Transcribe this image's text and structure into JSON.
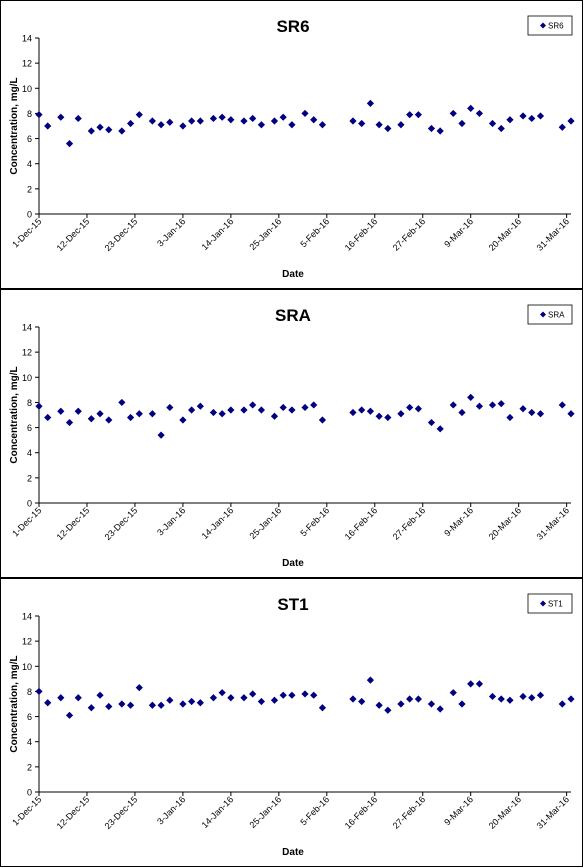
{
  "chart_data": [
    {
      "type": "scatter",
      "title": "SR6",
      "xlabel": "Date",
      "ylabel": "Concentration, mg/L",
      "ylim": [
        0,
        14
      ],
      "yticks": [
        0,
        2,
        4,
        6,
        8,
        10,
        12,
        14
      ],
      "xlim": [
        "2015-12-01",
        "2016-04-01"
      ],
      "xtick_labels": [
        "1-Dec-15",
        "12-Dec-15",
        "23-Dec-15",
        "3-Jan-16",
        "14-Jan-16",
        "25-Jan-16",
        "5-Feb-16",
        "16-Feb-16",
        "27-Feb-16",
        "9-Mar-16",
        "20-Mar-16",
        "31-Mar-16"
      ],
      "xtick_dates": [
        "2015-12-01",
        "2015-12-12",
        "2015-12-23",
        "2016-01-03",
        "2016-01-14",
        "2016-01-25",
        "2016-02-05",
        "2016-02-16",
        "2016-02-27",
        "2016-03-09",
        "2016-03-20",
        "2016-03-31"
      ],
      "grid": false,
      "legend_position": "top-right",
      "color": "#000080",
      "series": [
        {
          "name": "SR6",
          "points": [
            [
              "2015-12-01",
              7.9
            ],
            [
              "2015-12-03",
              7.0
            ],
            [
              "2015-12-06",
              7.7
            ],
            [
              "2015-12-08",
              5.6
            ],
            [
              "2015-12-10",
              7.6
            ],
            [
              "2015-12-13",
              6.6
            ],
            [
              "2015-12-15",
              6.9
            ],
            [
              "2015-12-17",
              6.7
            ],
            [
              "2015-12-20",
              6.6
            ],
            [
              "2015-12-22",
              7.2
            ],
            [
              "2015-12-24",
              7.9
            ],
            [
              "2015-12-27",
              7.4
            ],
            [
              "2015-12-29",
              7.1
            ],
            [
              "2015-12-31",
              7.3
            ],
            [
              "2016-01-03",
              7.0
            ],
            [
              "2016-01-05",
              7.4
            ],
            [
              "2016-01-07",
              7.4
            ],
            [
              "2016-01-10",
              7.6
            ],
            [
              "2016-01-12",
              7.7
            ],
            [
              "2016-01-14",
              7.5
            ],
            [
              "2016-01-17",
              7.4
            ],
            [
              "2016-01-19",
              7.6
            ],
            [
              "2016-01-21",
              7.1
            ],
            [
              "2016-01-24",
              7.4
            ],
            [
              "2016-01-26",
              7.7
            ],
            [
              "2016-01-28",
              7.1
            ],
            [
              "2016-01-31",
              8.0
            ],
            [
              "2016-02-02",
              7.5
            ],
            [
              "2016-02-04",
              7.1
            ],
            [
              "2016-02-11",
              7.4
            ],
            [
              "2016-02-13",
              7.2
            ],
            [
              "2016-02-15",
              8.8
            ],
            [
              "2016-02-17",
              7.1
            ],
            [
              "2016-02-19",
              6.8
            ],
            [
              "2016-02-22",
              7.1
            ],
            [
              "2016-02-24",
              7.9
            ],
            [
              "2016-02-26",
              7.9
            ],
            [
              "2016-02-29",
              6.8
            ],
            [
              "2016-03-02",
              6.6
            ],
            [
              "2016-03-05",
              8.0
            ],
            [
              "2016-03-07",
              7.2
            ],
            [
              "2016-03-09",
              8.4
            ],
            [
              "2016-03-11",
              8.0
            ],
            [
              "2016-03-14",
              7.2
            ],
            [
              "2016-03-16",
              6.8
            ],
            [
              "2016-03-18",
              7.5
            ],
            [
              "2016-03-21",
              7.8
            ],
            [
              "2016-03-23",
              7.6
            ],
            [
              "2016-03-25",
              7.8
            ],
            [
              "2016-03-30",
              6.9
            ],
            [
              "2016-04-01",
              7.4
            ]
          ]
        }
      ]
    },
    {
      "type": "scatter",
      "title": "SRA",
      "xlabel": "Date",
      "ylabel": "Concentration, mg/L",
      "ylim": [
        0,
        14
      ],
      "yticks": [
        0,
        2,
        4,
        6,
        8,
        10,
        12,
        14
      ],
      "xlim": [
        "2015-12-01",
        "2016-04-01"
      ],
      "xtick_labels": [
        "1-Dec-15",
        "12-Dec-15",
        "23-Dec-15",
        "3-Jan-16",
        "14-Jan-16",
        "25-Jan-16",
        "5-Feb-16",
        "16-Feb-16",
        "27-Feb-16",
        "9-Mar-16",
        "20-Mar-16",
        "31-Mar-16"
      ],
      "xtick_dates": [
        "2015-12-01",
        "2015-12-12",
        "2015-12-23",
        "2016-01-03",
        "2016-01-14",
        "2016-01-25",
        "2016-02-05",
        "2016-02-16",
        "2016-02-27",
        "2016-03-09",
        "2016-03-20",
        "2016-03-31"
      ],
      "grid": false,
      "legend_position": "top-right",
      "color": "#000080",
      "series": [
        {
          "name": "SRA",
          "points": [
            [
              "2015-12-01",
              7.7
            ],
            [
              "2015-12-03",
              6.8
            ],
            [
              "2015-12-06",
              7.3
            ],
            [
              "2015-12-08",
              6.4
            ],
            [
              "2015-12-10",
              7.3
            ],
            [
              "2015-12-13",
              6.7
            ],
            [
              "2015-12-15",
              7.1
            ],
            [
              "2015-12-17",
              6.6
            ],
            [
              "2015-12-20",
              8.0
            ],
            [
              "2015-12-22",
              6.8
            ],
            [
              "2015-12-24",
              7.1
            ],
            [
              "2015-12-27",
              7.1
            ],
            [
              "2015-12-29",
              5.4
            ],
            [
              "2015-12-31",
              7.6
            ],
            [
              "2016-01-03",
              6.6
            ],
            [
              "2016-01-05",
              7.4
            ],
            [
              "2016-01-07",
              7.7
            ],
            [
              "2016-01-10",
              7.2
            ],
            [
              "2016-01-12",
              7.1
            ],
            [
              "2016-01-14",
              7.4
            ],
            [
              "2016-01-17",
              7.4
            ],
            [
              "2016-01-19",
              7.8
            ],
            [
              "2016-01-21",
              7.4
            ],
            [
              "2016-01-24",
              6.9
            ],
            [
              "2016-01-26",
              7.6
            ],
            [
              "2016-01-28",
              7.4
            ],
            [
              "2016-01-31",
              7.6
            ],
            [
              "2016-02-02",
              7.8
            ],
            [
              "2016-02-04",
              6.6
            ],
            [
              "2016-02-11",
              7.2
            ],
            [
              "2016-02-13",
              7.4
            ],
            [
              "2016-02-15",
              7.3
            ],
            [
              "2016-02-17",
              6.9
            ],
            [
              "2016-02-19",
              6.8
            ],
            [
              "2016-02-22",
              7.1
            ],
            [
              "2016-02-24",
              7.6
            ],
            [
              "2016-02-26",
              7.5
            ],
            [
              "2016-02-29",
              6.4
            ],
            [
              "2016-03-02",
              5.9
            ],
            [
              "2016-03-05",
              7.8
            ],
            [
              "2016-03-07",
              7.2
            ],
            [
              "2016-03-09",
              8.4
            ],
            [
              "2016-03-11",
              7.7
            ],
            [
              "2016-03-14",
              7.8
            ],
            [
              "2016-03-16",
              7.9
            ],
            [
              "2016-03-18",
              6.8
            ],
            [
              "2016-03-21",
              7.5
            ],
            [
              "2016-03-23",
              7.2
            ],
            [
              "2016-03-25",
              7.1
            ],
            [
              "2016-03-30",
              7.8
            ],
            [
              "2016-04-01",
              7.1
            ]
          ]
        }
      ]
    },
    {
      "type": "scatter",
      "title": "ST1",
      "xlabel": "Date",
      "ylabel": "Concentration, mg/L",
      "ylim": [
        0,
        14
      ],
      "yticks": [
        0,
        2,
        4,
        6,
        8,
        10,
        12,
        14
      ],
      "xlim": [
        "2015-12-01",
        "2016-04-01"
      ],
      "xtick_labels": [
        "1-Dec-15",
        "12-Dec-15",
        "23-Dec-15",
        "3-Jan-16",
        "14-Jan-16",
        "25-Jan-16",
        "5-Feb-16",
        "16-Feb-16",
        "27-Feb-16",
        "9-Mar-16",
        "20-Mar-16",
        "31-Mar-16"
      ],
      "xtick_dates": [
        "2015-12-01",
        "2015-12-12",
        "2015-12-23",
        "2016-01-03",
        "2016-01-14",
        "2016-01-25",
        "2016-02-05",
        "2016-02-16",
        "2016-02-27",
        "2016-03-09",
        "2016-03-20",
        "2016-03-31"
      ],
      "grid": false,
      "legend_position": "top-right",
      "color": "#000080",
      "series": [
        {
          "name": "ST1",
          "points": [
            [
              "2015-12-01",
              8.0
            ],
            [
              "2015-12-03",
              7.1
            ],
            [
              "2015-12-06",
              7.5
            ],
            [
              "2015-12-08",
              6.1
            ],
            [
              "2015-12-10",
              7.5
            ],
            [
              "2015-12-13",
              6.7
            ],
            [
              "2015-12-15",
              7.7
            ],
            [
              "2015-12-17",
              6.8
            ],
            [
              "2015-12-20",
              7.0
            ],
            [
              "2015-12-22",
              6.9
            ],
            [
              "2015-12-24",
              8.3
            ],
            [
              "2015-12-27",
              6.9
            ],
            [
              "2015-12-29",
              6.9
            ],
            [
              "2015-12-31",
              7.3
            ],
            [
              "2016-01-03",
              7.0
            ],
            [
              "2016-01-05",
              7.2
            ],
            [
              "2016-01-07",
              7.1
            ],
            [
              "2016-01-10",
              7.5
            ],
            [
              "2016-01-12",
              7.9
            ],
            [
              "2016-01-14",
              7.5
            ],
            [
              "2016-01-17",
              7.5
            ],
            [
              "2016-01-19",
              7.8
            ],
            [
              "2016-01-21",
              7.2
            ],
            [
              "2016-01-24",
              7.3
            ],
            [
              "2016-01-26",
              7.7
            ],
            [
              "2016-01-28",
              7.7
            ],
            [
              "2016-01-31",
              7.8
            ],
            [
              "2016-02-02",
              7.7
            ],
            [
              "2016-02-04",
              6.7
            ],
            [
              "2016-02-11",
              7.4
            ],
            [
              "2016-02-13",
              7.2
            ],
            [
              "2016-02-15",
              8.9
            ],
            [
              "2016-02-17",
              6.9
            ],
            [
              "2016-02-19",
              6.5
            ],
            [
              "2016-02-22",
              7.0
            ],
            [
              "2016-02-24",
              7.4
            ],
            [
              "2016-02-26",
              7.4
            ],
            [
              "2016-02-29",
              7.0
            ],
            [
              "2016-03-02",
              6.6
            ],
            [
              "2016-03-05",
              7.9
            ],
            [
              "2016-03-07",
              7.0
            ],
            [
              "2016-03-09",
              8.6
            ],
            [
              "2016-03-11",
              8.6
            ],
            [
              "2016-03-14",
              7.6
            ],
            [
              "2016-03-16",
              7.4
            ],
            [
              "2016-03-18",
              7.3
            ],
            [
              "2016-03-21",
              7.6
            ],
            [
              "2016-03-23",
              7.5
            ],
            [
              "2016-03-25",
              7.7
            ],
            [
              "2016-03-30",
              7.0
            ],
            [
              "2016-04-01",
              7.4
            ]
          ]
        }
      ]
    }
  ]
}
